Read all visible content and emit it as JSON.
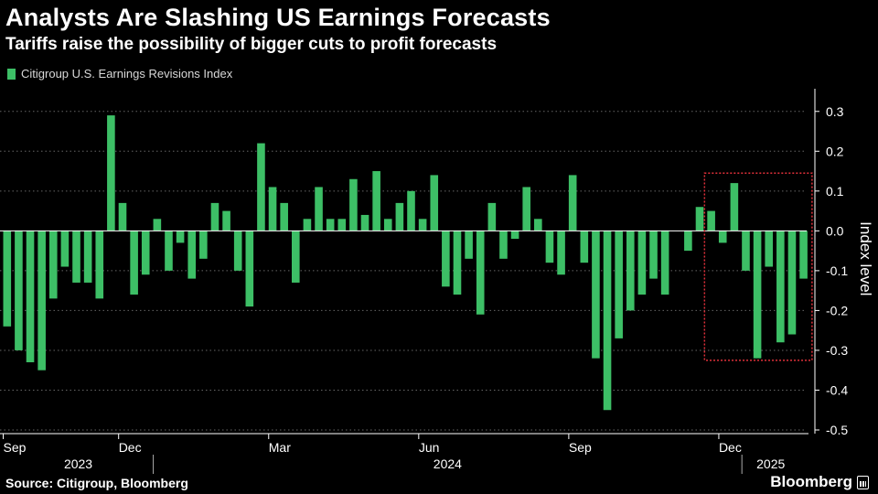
{
  "title": "Analysts Are Slashing US Earnings Forecasts",
  "subtitle": "Tariffs raise the possibility of bigger cuts to profit forecasts",
  "source": "Source: Citigroup, Bloomberg",
  "brand": "Bloomberg",
  "colors": {
    "bar": "#3dbf66",
    "background": "#000000",
    "grid": "#666666",
    "highlight": "#e0303a"
  },
  "chart_data": {
    "type": "bar",
    "title": "Analysts Are Slashing US Earnings Forecasts",
    "subtitle": "Tariffs raise the possibility of bigger cuts to profit forecasts",
    "ylabel": "Index level",
    "ylim": [
      -0.5,
      0.3
    ],
    "yticks": [
      0.3,
      0.2,
      0.1,
      0.0,
      -0.1,
      -0.2,
      -0.3,
      -0.4,
      -0.5
    ],
    "ytick_labels": [
      "0.3",
      "0.2",
      "0.1",
      "0.0",
      "-0.1",
      "-0.2",
      "-0.3",
      "-0.4",
      "-0.5"
    ],
    "y_axis_side": "right",
    "grid": "horizontal dotted",
    "legend": "top-left",
    "x_month_ticks": [
      {
        "label": "Sep",
        "index": 0
      },
      {
        "label": "Dec",
        "index": 10
      },
      {
        "label": "Mar",
        "index": 23
      },
      {
        "label": "Jun",
        "index": 36
      },
      {
        "label": "Sep",
        "index": 49
      },
      {
        "label": "Dec",
        "index": 62
      }
    ],
    "x_year_labels": [
      {
        "label": "2023",
        "start": 0,
        "end": 13
      },
      {
        "label": "2024",
        "start": 13,
        "end": 64
      },
      {
        "label": "2025",
        "start": 64,
        "end": 69
      }
    ],
    "series": [
      {
        "name": "Citigroup U.S. Earnings Revisions Index",
        "values": [
          -0.24,
          -0.3,
          -0.33,
          -0.35,
          -0.17,
          -0.09,
          -0.13,
          -0.13,
          -0.17,
          0.29,
          0.07,
          -0.16,
          -0.11,
          0.03,
          -0.1,
          -0.03,
          -0.12,
          -0.07,
          0.07,
          0.05,
          -0.1,
          -0.19,
          0.22,
          0.11,
          0.07,
          -0.13,
          0.03,
          0.11,
          0.03,
          0.03,
          0.13,
          0.04,
          0.15,
          0.03,
          0.07,
          0.1,
          0.03,
          0.14,
          -0.14,
          -0.16,
          -0.07,
          -0.21,
          0.07,
          -0.07,
          -0.02,
          0.11,
          0.03,
          -0.08,
          -0.11,
          0.14,
          -0.08,
          -0.32,
          -0.45,
          -0.27,
          -0.2,
          -0.16,
          -0.12,
          -0.16,
          0.0,
          -0.05,
          0.06,
          0.05,
          -0.03,
          0.12,
          -0.1,
          -0.32,
          -0.09,
          -0.28,
          -0.26,
          -0.12
        ]
      }
    ],
    "highlight_box": {
      "from_index": 61,
      "to_index": 69,
      "style": "red dotted rectangle"
    }
  }
}
